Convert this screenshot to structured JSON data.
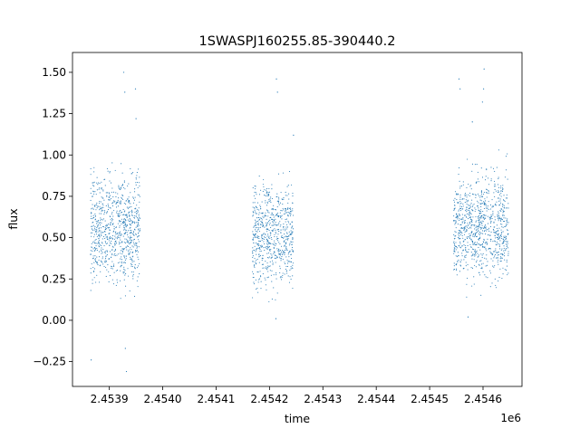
{
  "chart_data": {
    "type": "scatter",
    "title": "1SWASPJ160255.85-390440.2",
    "xlabel": "time",
    "ylabel": "flux",
    "x_offset_label": "1e6",
    "xlim": [
      2453831,
      2454673
    ],
    "ylim": [
      -0.4,
      1.62
    ],
    "xticks": [
      2453900,
      2454000,
      2454100,
      2454200,
      2454300,
      2454400,
      2454500,
      2454600
    ],
    "xtick_labels": [
      "2.4539",
      "2.4540",
      "2.4541",
      "2.4542",
      "2.4543",
      "2.4544",
      "2.4545",
      "2.4546"
    ],
    "yticks": [
      -0.25,
      0.0,
      0.25,
      0.5,
      0.75,
      1.0,
      1.25,
      1.5
    ],
    "ytick_labels": [
      "−0.25",
      "0.00",
      "0.25",
      "0.50",
      "0.75",
      "1.00",
      "1.25",
      "1.50"
    ],
    "grid": false,
    "marker_color": "#1f77b4",
    "series": [
      {
        "segments": [
          {
            "x_start": 2453865,
            "x_end": 2453958,
            "y_median": 0.55,
            "y_spread": 0.16
          },
          {
            "x_start": 2454168,
            "x_end": 2454245,
            "y_median": 0.52,
            "y_spread": 0.15
          },
          {
            "x_start": 2454545,
            "x_end": 2454648,
            "y_median": 0.57,
            "y_spread": 0.16
          }
        ],
        "points": [
          {
            "x": 2453866,
            "y": -0.24
          },
          {
            "x": 2453932,
            "y": -0.31
          },
          {
            "x": 2453930,
            "y": -0.17
          },
          {
            "x": 2453927,
            "y": 1.5
          },
          {
            "x": 2453929,
            "y": 1.38
          },
          {
            "x": 2453949,
            "y": 1.4
          },
          {
            "x": 2453950,
            "y": 1.22
          },
          {
            "x": 2454213,
            "y": 1.46
          },
          {
            "x": 2454215,
            "y": 1.38
          },
          {
            "x": 2454212,
            "y": 0.01
          },
          {
            "x": 2454245,
            "y": 1.12
          },
          {
            "x": 2454602,
            "y": 1.52
          },
          {
            "x": 2454601,
            "y": 1.4
          },
          {
            "x": 2454599,
            "y": 1.32
          },
          {
            "x": 2454580,
            "y": 1.2
          },
          {
            "x": 2454555,
            "y": 1.46
          },
          {
            "x": 2454557,
            "y": 1.4
          },
          {
            "x": 2454572,
            "y": 0.02
          }
        ]
      }
    ]
  }
}
